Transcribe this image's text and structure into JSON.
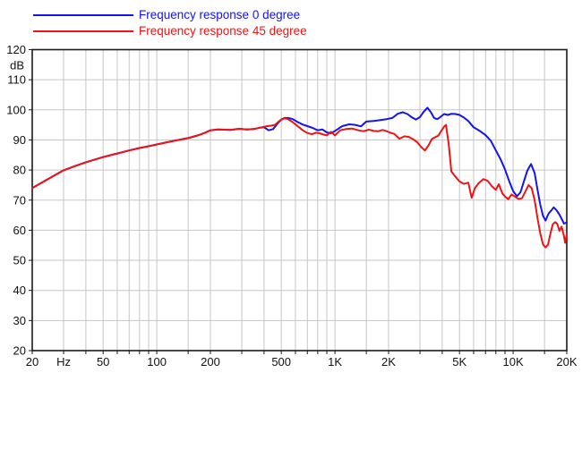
{
  "legend": {
    "items": [
      {
        "label": "Frequency response 0 degree",
        "color": "#1414ee"
      },
      {
        "label": "Frequency response 45 degree",
        "color": "#ee1414"
      }
    ]
  },
  "colors": {
    "grid": "#c6c6c6",
    "border": "#1a1a1a",
    "tick": "#1a1a1a",
    "label": "#111111",
    "background": "#ffffff",
    "series_blue": "#1414ee",
    "series_red": "#ee1414"
  },
  "chart_data": {
    "type": "line",
    "title": "",
    "xlabel": "Hz",
    "ylabel": "dB",
    "x_scale": "log",
    "x_range": [
      20,
      20000
    ],
    "y_range": [
      20,
      120
    ],
    "y_step": 10,
    "y_unit": "dB",
    "grid": true,
    "legend_position": "top-left",
    "x_gridlines": [
      20,
      30,
      40,
      50,
      60,
      70,
      80,
      90,
      100,
      150,
      200,
      300,
      400,
      500,
      600,
      700,
      800,
      900,
      1000,
      1500,
      2000,
      3000,
      4000,
      5000,
      6000,
      7000,
      8000,
      9000,
      10000,
      15000,
      20000
    ],
    "x_tick_labels": [
      {
        "f": 20,
        "text": "20"
      },
      {
        "f": 30,
        "text": "Hz"
      },
      {
        "f": 50,
        "text": "50"
      },
      {
        "f": 100,
        "text": "100"
      },
      {
        "f": 200,
        "text": "200"
      },
      {
        "f": 500,
        "text": "500"
      },
      {
        "f": 1000,
        "text": "1K"
      },
      {
        "f": 2000,
        "text": "2K"
      },
      {
        "f": 5000,
        "text": "5K"
      },
      {
        "f": 10000,
        "text": "10K"
      },
      {
        "f": 20000,
        "text": "20K"
      }
    ],
    "series": [
      {
        "name": "Frequency response 0 degree",
        "color": "#1414ee",
        "points": [
          [
            20,
            74
          ],
          [
            25,
            77.3
          ],
          [
            30,
            79.9
          ],
          [
            35,
            81.4
          ],
          [
            40,
            82.6
          ],
          [
            50,
            84.3
          ],
          [
            60,
            85.5
          ],
          [
            70,
            86.5
          ],
          [
            80,
            87.3
          ],
          [
            90,
            87.9
          ],
          [
            100,
            88.5
          ],
          [
            120,
            89.5
          ],
          [
            150,
            90.6
          ],
          [
            170,
            91.5
          ],
          [
            185,
            92.3
          ],
          [
            200,
            93.2
          ],
          [
            220,
            93.5
          ],
          [
            240,
            93.4
          ],
          [
            260,
            93.3
          ],
          [
            290,
            93.7
          ],
          [
            320,
            93.5
          ],
          [
            350,
            93.6
          ],
          [
            380,
            94.1
          ],
          [
            400,
            94.2
          ],
          [
            425,
            93.2
          ],
          [
            450,
            93.6
          ],
          [
            475,
            95.4
          ],
          [
            500,
            96.8
          ],
          [
            520,
            97.3
          ],
          [
            550,
            97.3
          ],
          [
            580,
            96.9
          ],
          [
            620,
            95.9
          ],
          [
            660,
            95.1
          ],
          [
            700,
            94.6
          ],
          [
            750,
            94.0
          ],
          [
            800,
            93.2
          ],
          [
            850,
            93.5
          ],
          [
            900,
            92.5
          ],
          [
            950,
            92.2
          ],
          [
            1000,
            93.0
          ],
          [
            1100,
            94.6
          ],
          [
            1200,
            95.2
          ],
          [
            1300,
            95.0
          ],
          [
            1400,
            94.5
          ],
          [
            1500,
            96.1
          ],
          [
            1650,
            96.3
          ],
          [
            1800,
            96.6
          ],
          [
            1950,
            96.9
          ],
          [
            2100,
            97.3
          ],
          [
            2250,
            98.7
          ],
          [
            2400,
            99.2
          ],
          [
            2550,
            98.6
          ],
          [
            2700,
            97.5
          ],
          [
            2850,
            96.8
          ],
          [
            3000,
            97.6
          ],
          [
            3150,
            99.4
          ],
          [
            3300,
            100.7
          ],
          [
            3450,
            99.3
          ],
          [
            3600,
            97.3
          ],
          [
            3750,
            96.9
          ],
          [
            3900,
            97.6
          ],
          [
            4100,
            98.6
          ],
          [
            4300,
            98.3
          ],
          [
            4500,
            98.7
          ],
          [
            4750,
            98.6
          ],
          [
            5000,
            98.3
          ],
          [
            5300,
            97.4
          ],
          [
            5600,
            96.3
          ],
          [
            6000,
            94.2
          ],
          [
            6500,
            93.0
          ],
          [
            7000,
            91.6
          ],
          [
            7500,
            89.7
          ],
          [
            8000,
            86.5
          ],
          [
            8500,
            83.6
          ],
          [
            9000,
            80.2
          ],
          [
            9500,
            76.3
          ],
          [
            10000,
            73.0
          ],
          [
            10500,
            71.3
          ],
          [
            11000,
            72.6
          ],
          [
            11500,
            76.3
          ],
          [
            12000,
            79.8
          ],
          [
            12600,
            82.0
          ],
          [
            13200,
            79.0
          ],
          [
            13700,
            73.5
          ],
          [
            14200,
            68.5
          ],
          [
            14700,
            64.8
          ],
          [
            15200,
            63.2
          ],
          [
            15800,
            65.5
          ],
          [
            16400,
            66.6
          ],
          [
            16900,
            67.6
          ],
          [
            17500,
            66.7
          ],
          [
            18200,
            65.2
          ],
          [
            18800,
            63.5
          ],
          [
            19300,
            62.2
          ],
          [
            20000,
            62.6
          ]
        ]
      },
      {
        "name": "Frequency response 45 degree",
        "color": "#ee1414",
        "points": [
          [
            20,
            74
          ],
          [
            25,
            77.3
          ],
          [
            30,
            79.9
          ],
          [
            35,
            81.4
          ],
          [
            40,
            82.6
          ],
          [
            50,
            84.3
          ],
          [
            60,
            85.5
          ],
          [
            70,
            86.5
          ],
          [
            80,
            87.3
          ],
          [
            90,
            87.9
          ],
          [
            100,
            88.5
          ],
          [
            120,
            89.5
          ],
          [
            150,
            90.6
          ],
          [
            170,
            91.5
          ],
          [
            185,
            92.3
          ],
          [
            200,
            93.2
          ],
          [
            220,
            93.5
          ],
          [
            240,
            93.4
          ],
          [
            260,
            93.3
          ],
          [
            290,
            93.7
          ],
          [
            320,
            93.5
          ],
          [
            350,
            93.6
          ],
          [
            380,
            94.1
          ],
          [
            410,
            94.5
          ],
          [
            435,
            94.7
          ],
          [
            460,
            95.0
          ],
          [
            490,
            96.4
          ],
          [
            520,
            97.2
          ],
          [
            550,
            96.8
          ],
          [
            580,
            95.9
          ],
          [
            620,
            94.5
          ],
          [
            660,
            93.2
          ],
          [
            700,
            92.3
          ],
          [
            740,
            91.9
          ],
          [
            780,
            92.4
          ],
          [
            820,
            92.2
          ],
          [
            860,
            91.8
          ],
          [
            900,
            91.5
          ],
          [
            950,
            92.7
          ],
          [
            1000,
            91.5
          ],
          [
            1070,
            93.2
          ],
          [
            1150,
            93.6
          ],
          [
            1250,
            93.8
          ],
          [
            1350,
            93.2
          ],
          [
            1450,
            92.9
          ],
          [
            1550,
            93.4
          ],
          [
            1650,
            93.0
          ],
          [
            1750,
            92.9
          ],
          [
            1850,
            93.3
          ],
          [
            1950,
            92.9
          ],
          [
            2050,
            92.4
          ],
          [
            2150,
            92.0
          ],
          [
            2300,
            90.4
          ],
          [
            2450,
            91.2
          ],
          [
            2600,
            91.0
          ],
          [
            2750,
            90.2
          ],
          [
            2900,
            89.2
          ],
          [
            3050,
            87.6
          ],
          [
            3200,
            86.5
          ],
          [
            3350,
            88.2
          ],
          [
            3500,
            90.3
          ],
          [
            3650,
            90.9
          ],
          [
            3800,
            91.4
          ],
          [
            3950,
            93.0
          ],
          [
            4100,
            94.4
          ],
          [
            4200,
            95.0
          ],
          [
            4350,
            88.5
          ],
          [
            4500,
            79.5
          ],
          [
            4700,
            78.1
          ],
          [
            5000,
            76.2
          ],
          [
            5300,
            75.4
          ],
          [
            5600,
            75.8
          ],
          [
            5850,
            70.8
          ],
          [
            6100,
            74.0
          ],
          [
            6400,
            75.6
          ],
          [
            6800,
            77.0
          ],
          [
            7200,
            76.4
          ],
          [
            7600,
            74.6
          ],
          [
            8000,
            73.4
          ],
          [
            8300,
            75.3
          ],
          [
            8700,
            72.2
          ],
          [
            9000,
            71.2
          ],
          [
            9400,
            70.3
          ],
          [
            9800,
            71.9
          ],
          [
            10200,
            71.2
          ],
          [
            10700,
            70.4
          ],
          [
            11200,
            70.6
          ],
          [
            11700,
            72.8
          ],
          [
            12200,
            75.0
          ],
          [
            12700,
            74.0
          ],
          [
            13200,
            70.0
          ],
          [
            13700,
            64.0
          ],
          [
            14200,
            59.0
          ],
          [
            14700,
            55.3
          ],
          [
            15200,
            54.3
          ],
          [
            15700,
            55.2
          ],
          [
            16200,
            59.0
          ],
          [
            16700,
            62.0
          ],
          [
            17200,
            62.7
          ],
          [
            17700,
            62.1
          ],
          [
            18200,
            59.8
          ],
          [
            18700,
            61.2
          ],
          [
            19200,
            58.5
          ],
          [
            19600,
            55.8
          ],
          [
            20000,
            58.8
          ]
        ]
      }
    ]
  }
}
